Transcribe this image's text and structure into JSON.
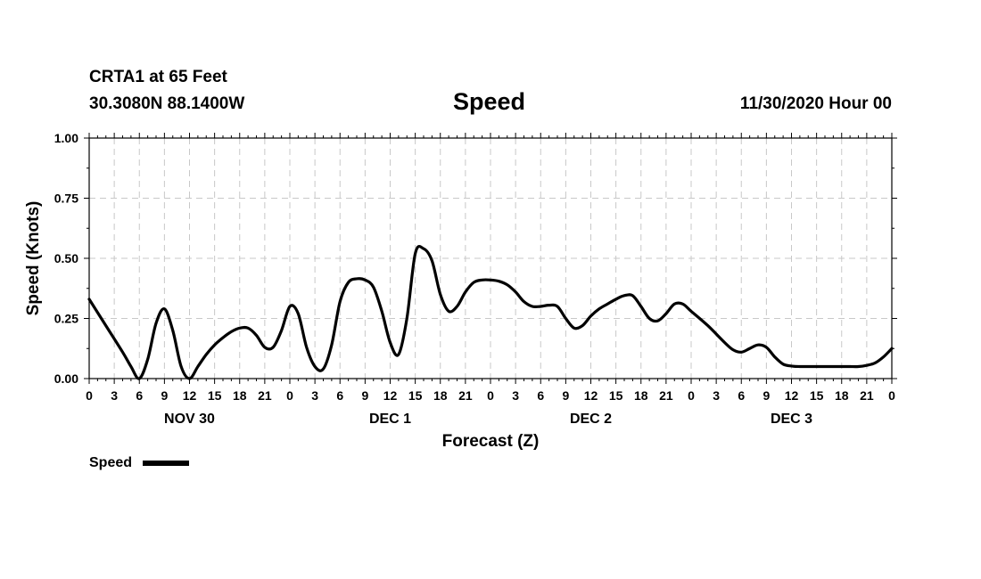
{
  "header": {
    "station": "CRTA1 at 65 Feet",
    "coordinates": "30.3080N 88.1400W",
    "title": "Speed",
    "date": "11/30/2020 Hour 00"
  },
  "chart_data": {
    "type": "line",
    "title": "Speed",
    "xlabel": "Forecast (Z)",
    "ylabel": "Speed (Knots)",
    "xlim": [
      0,
      96
    ],
    "ylim": [
      0,
      1
    ],
    "y_ticks": [
      "0.00",
      "0.25",
      "0.50",
      "0.75",
      "1.00"
    ],
    "x_tick_labels": [
      "0",
      "3",
      "6",
      "9",
      "12",
      "15",
      "18",
      "21",
      "0",
      "3",
      "6",
      "9",
      "12",
      "15",
      "18",
      "21",
      "0",
      "3",
      "6",
      "9",
      "12",
      "15",
      "18",
      "21",
      "0",
      "3",
      "6",
      "9",
      "12",
      "15",
      "18",
      "21",
      "0"
    ],
    "day_labels": [
      "NOV 30",
      "DEC 1",
      "DEC 2",
      "DEC 3"
    ],
    "grid": true,
    "legend": {
      "position": "bottom-left",
      "label": "Speed"
    },
    "series": [
      {
        "name": "Speed",
        "color": "#000000",
        "x": [
          0,
          2,
          4,
          5,
          6,
          7,
          8,
          9,
          10,
          11,
          12,
          13,
          14,
          15,
          16,
          17,
          18,
          19,
          20,
          21,
          22,
          23,
          24,
          25,
          26,
          27,
          28,
          29,
          30,
          31,
          32,
          33,
          34,
          35,
          36,
          37,
          38,
          39,
          40,
          41,
          42,
          43,
          44,
          45,
          46,
          47,
          48,
          49,
          50,
          51,
          52,
          53,
          54,
          55,
          56,
          57,
          58,
          59,
          60,
          61,
          62,
          63,
          64,
          65,
          66,
          67,
          68,
          69,
          70,
          71,
          72,
          74,
          76,
          77,
          78,
          79,
          80,
          81,
          82,
          83,
          84,
          85,
          86,
          87,
          88,
          89,
          90,
          91,
          92,
          93,
          94,
          95,
          96
        ],
        "y": [
          0.33,
          0.22,
          0.11,
          0.05,
          0.0,
          0.08,
          0.23,
          0.29,
          0.2,
          0.05,
          0.0,
          0.05,
          0.1,
          0.14,
          0.17,
          0.195,
          0.21,
          0.21,
          0.18,
          0.13,
          0.13,
          0.2,
          0.3,
          0.27,
          0.13,
          0.05,
          0.04,
          0.14,
          0.32,
          0.4,
          0.415,
          0.41,
          0.38,
          0.28,
          0.15,
          0.1,
          0.25,
          0.52,
          0.54,
          0.49,
          0.35,
          0.28,
          0.3,
          0.36,
          0.4,
          0.41,
          0.41,
          0.405,
          0.39,
          0.36,
          0.32,
          0.3,
          0.3,
          0.305,
          0.3,
          0.25,
          0.21,
          0.22,
          0.26,
          0.29,
          0.31,
          0.33,
          0.345,
          0.345,
          0.3,
          0.25,
          0.24,
          0.27,
          0.31,
          0.31,
          0.28,
          0.22,
          0.15,
          0.12,
          0.11,
          0.125,
          0.14,
          0.13,
          0.09,
          0.06,
          0.052,
          0.05,
          0.05,
          0.05,
          0.05,
          0.05,
          0.05,
          0.05,
          0.05,
          0.055,
          0.065,
          0.09,
          0.125
        ]
      }
    ]
  }
}
